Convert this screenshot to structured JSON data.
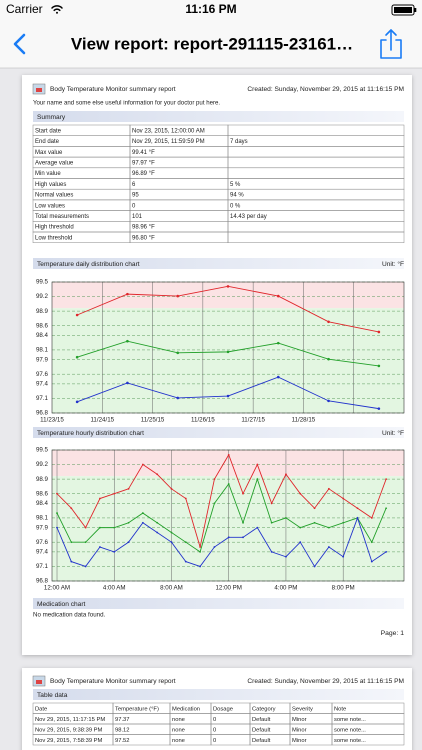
{
  "status_bar": {
    "carrier": "Carrier",
    "time": "11:16 PM"
  },
  "nav": {
    "title": "View report: report-291115-23161…"
  },
  "report": {
    "title": "Body Temperature Monitor summary report",
    "created": "Created: Sunday, November 29, 2015 at 11:16:15 PM",
    "note": "Your name and some else useful information for your doctor put here.",
    "summary": {
      "heading": "Summary",
      "rows": [
        [
          "Start date",
          "Nov 23, 2015, 12:00:00 AM"
        ],
        [
          "End date",
          "Nov 29, 2015, 11:59:59 PM",
          "7 days"
        ],
        [
          "Max value",
          "99.41 °F"
        ],
        [
          "Average value",
          "97.97 °F"
        ],
        [
          "Min value",
          "96.89 °F"
        ],
        [
          "High values",
          "6",
          "5 %"
        ],
        [
          "Normal values",
          "95",
          "94 %"
        ],
        [
          "Low values",
          "0",
          "0 %"
        ],
        [
          "Total measurements",
          "101",
          "14.43 per day"
        ],
        [
          "High threshold",
          "98.96 °F"
        ],
        [
          "Low threshold",
          "96.80 °F"
        ]
      ]
    },
    "medication": {
      "heading": "Medication chart",
      "message": "No medication data found."
    },
    "page_label": "Page: 1"
  },
  "chart_data": [
    {
      "type": "line",
      "title": "Temperature daily distribution chart",
      "unit_label": "Unit: °F",
      "categories": [
        "11/23/15",
        "11/24/15",
        "11/25/15",
        "11/26/15",
        "11/27/15",
        "11/28/15",
        null
      ],
      "ylim": [
        96.8,
        99.5
      ],
      "yticks": [
        96.8,
        97.1,
        97.4,
        97.6,
        97.9,
        98.1,
        98.4,
        98.6,
        98.9,
        99.2,
        99.5
      ],
      "high_threshold": 98.96,
      "low_threshold": 96.8,
      "grid": true,
      "series": [
        {
          "color": "#e0262b",
          "values": [
            98.82,
            99.25,
            99.21,
            99.41,
            99.21,
            98.68,
            98.47
          ]
        },
        {
          "color": "#23a02a",
          "values": [
            97.95,
            98.28,
            98.04,
            98.06,
            98.24,
            97.91,
            97.77
          ]
        },
        {
          "color": "#2233cc",
          "values": [
            97.03,
            97.42,
            97.11,
            97.15,
            97.54,
            97.05,
            96.89
          ]
        }
      ]
    },
    {
      "type": "line",
      "title": "Temperature hourly distribution chart",
      "unit_label": "Unit: °F",
      "x": [
        0,
        1,
        2,
        3,
        4,
        5,
        6,
        7,
        8,
        9,
        10,
        11,
        12,
        13,
        14,
        15,
        16,
        17,
        18,
        19,
        20,
        21,
        22,
        23
      ],
      "xlim": [
        -0.35,
        24.25
      ],
      "xticks": [
        {
          "value": 0,
          "label": "12:00 AM"
        },
        {
          "value": 4,
          "label": "4:00 AM"
        },
        {
          "value": 8,
          "label": "8:00 AM"
        },
        {
          "value": 12,
          "label": "12:00 PM"
        },
        {
          "value": 16,
          "label": "4:00 PM"
        },
        {
          "value": 20,
          "label": "8:00 PM"
        }
      ],
      "ylim": [
        96.8,
        99.5
      ],
      "yticks": [
        96.8,
        97.1,
        97.4,
        97.6,
        97.9,
        98.1,
        98.4,
        98.6,
        98.9,
        99.2,
        99.5
      ],
      "high_threshold": 98.96,
      "low_threshold": 96.8,
      "grid": true,
      "series": [
        {
          "color": "#e0262b",
          "values": [
            98.6,
            98.3,
            97.9,
            98.5,
            98.6,
            98.7,
            99.2,
            99.0,
            98.7,
            98.5,
            97.5,
            98.9,
            99.4,
            98.6,
            99.2,
            98.4,
            99.0,
            98.6,
            98.3,
            98.7,
            98.5,
            98.3,
            98.1,
            98.9
          ]
        },
        {
          "color": "#23a02a",
          "values": [
            98.2,
            97.6,
            97.6,
            97.9,
            97.9,
            98.0,
            98.2,
            98.0,
            97.8,
            97.6,
            97.4,
            98.4,
            98.8,
            98.0,
            98.9,
            98.0,
            98.1,
            97.9,
            98.0,
            97.9,
            98.0,
            98.1,
            97.6,
            98.3
          ]
        },
        {
          "color": "#2233cc",
          "values": [
            97.9,
            97.2,
            97.1,
            97.5,
            97.4,
            97.6,
            98.0,
            97.8,
            97.6,
            97.2,
            97.1,
            97.5,
            97.7,
            97.7,
            97.9,
            97.4,
            97.3,
            97.6,
            97.1,
            97.5,
            97.3,
            98.1,
            97.2,
            97.4
          ]
        }
      ]
    }
  ],
  "report2": {
    "title": "Body Temperature Monitor summary report",
    "created": "Created: Sunday, November 29, 2015 at 11:16:15 PM",
    "table": {
      "heading": "Table data",
      "columns": [
        "Date",
        "Temperature (°F)",
        "Medication",
        "Dosage",
        "Category",
        "Severity",
        "Note"
      ],
      "rows": [
        [
          "Nov 29, 2015, 11:17:15 PM",
          "97.37",
          "none",
          "0",
          "Default",
          "Minor",
          "some note..."
        ],
        [
          "Nov 29, 2015, 9:38:39 PM",
          "98.12",
          "none",
          "0",
          "Default",
          "Minor",
          "some note..."
        ],
        [
          "Nov 29, 2015, 7:58:39 PM",
          "97.52",
          "none",
          "0",
          "Default",
          "Minor",
          "some note..."
        ]
      ]
    }
  }
}
